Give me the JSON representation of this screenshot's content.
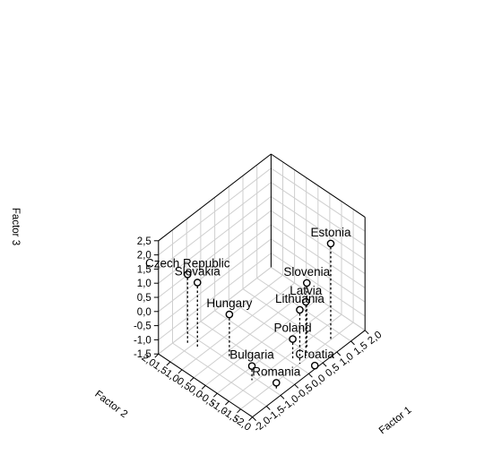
{
  "chart_data": {
    "type": "scatter",
    "dimensions": 3,
    "xlabel": "Factor 1",
    "ylabel": "Factor 2",
    "zlabel": "Factor 3",
    "xlim": [
      -2.0,
      2.0
    ],
    "ylim": [
      -2.0,
      2.0
    ],
    "zlim": [
      -1.5,
      2.5
    ],
    "x_ticks": [
      "-2,0",
      "-1,5",
      "-1,0",
      "-0,5",
      "0,0",
      "0,5",
      "1,0",
      "1,5",
      "2,0"
    ],
    "y_ticks": [
      "-2,0",
      "-1,5",
      "-1,0",
      "-0,5",
      "0,0",
      "0,5",
      "1,0",
      "1,5",
      "2,0"
    ],
    "z_ticks": [
      "-1,5",
      "-1,0",
      "-0,5",
      "0,0",
      "0,5",
      "1,0",
      "1,5",
      "2,0",
      "2,5"
    ],
    "grid": true,
    "points": [
      {
        "label": "Estonia",
        "x": 1.2,
        "y": -1.5,
        "z": 1.9
      },
      {
        "label": "Slovenia",
        "x": 0.6,
        "y": -1.2,
        "z": 0.8
      },
      {
        "label": "Lithuania",
        "x": 0.1,
        "y": -1.5,
        "z": 0.4
      },
      {
        "label": "Latvia",
        "x": 0.4,
        "y": -1.4,
        "z": 0.4
      },
      {
        "label": "Poland",
        "x": 0.1,
        "y": -1.2,
        "z": -0.8
      },
      {
        "label": "Croatia",
        "x": 0.3,
        "y": -1.9,
        "z": -1.5
      },
      {
        "label": "Romania",
        "x": -0.9,
        "y": -1.7,
        "z": -1.3
      },
      {
        "label": "Bulgaria",
        "x": -1.1,
        "y": -0.9,
        "z": -1.0
      },
      {
        "label": "Hungary",
        "x": -0.9,
        "y": 0.3,
        "z": 0.0
      },
      {
        "label": "Slovakia",
        "x": -1.2,
        "y": 1.3,
        "z": 0.8
      },
      {
        "label": "Czech Republic",
        "x": -1.3,
        "y": 1.6,
        "z": 1.0
      }
    ]
  }
}
